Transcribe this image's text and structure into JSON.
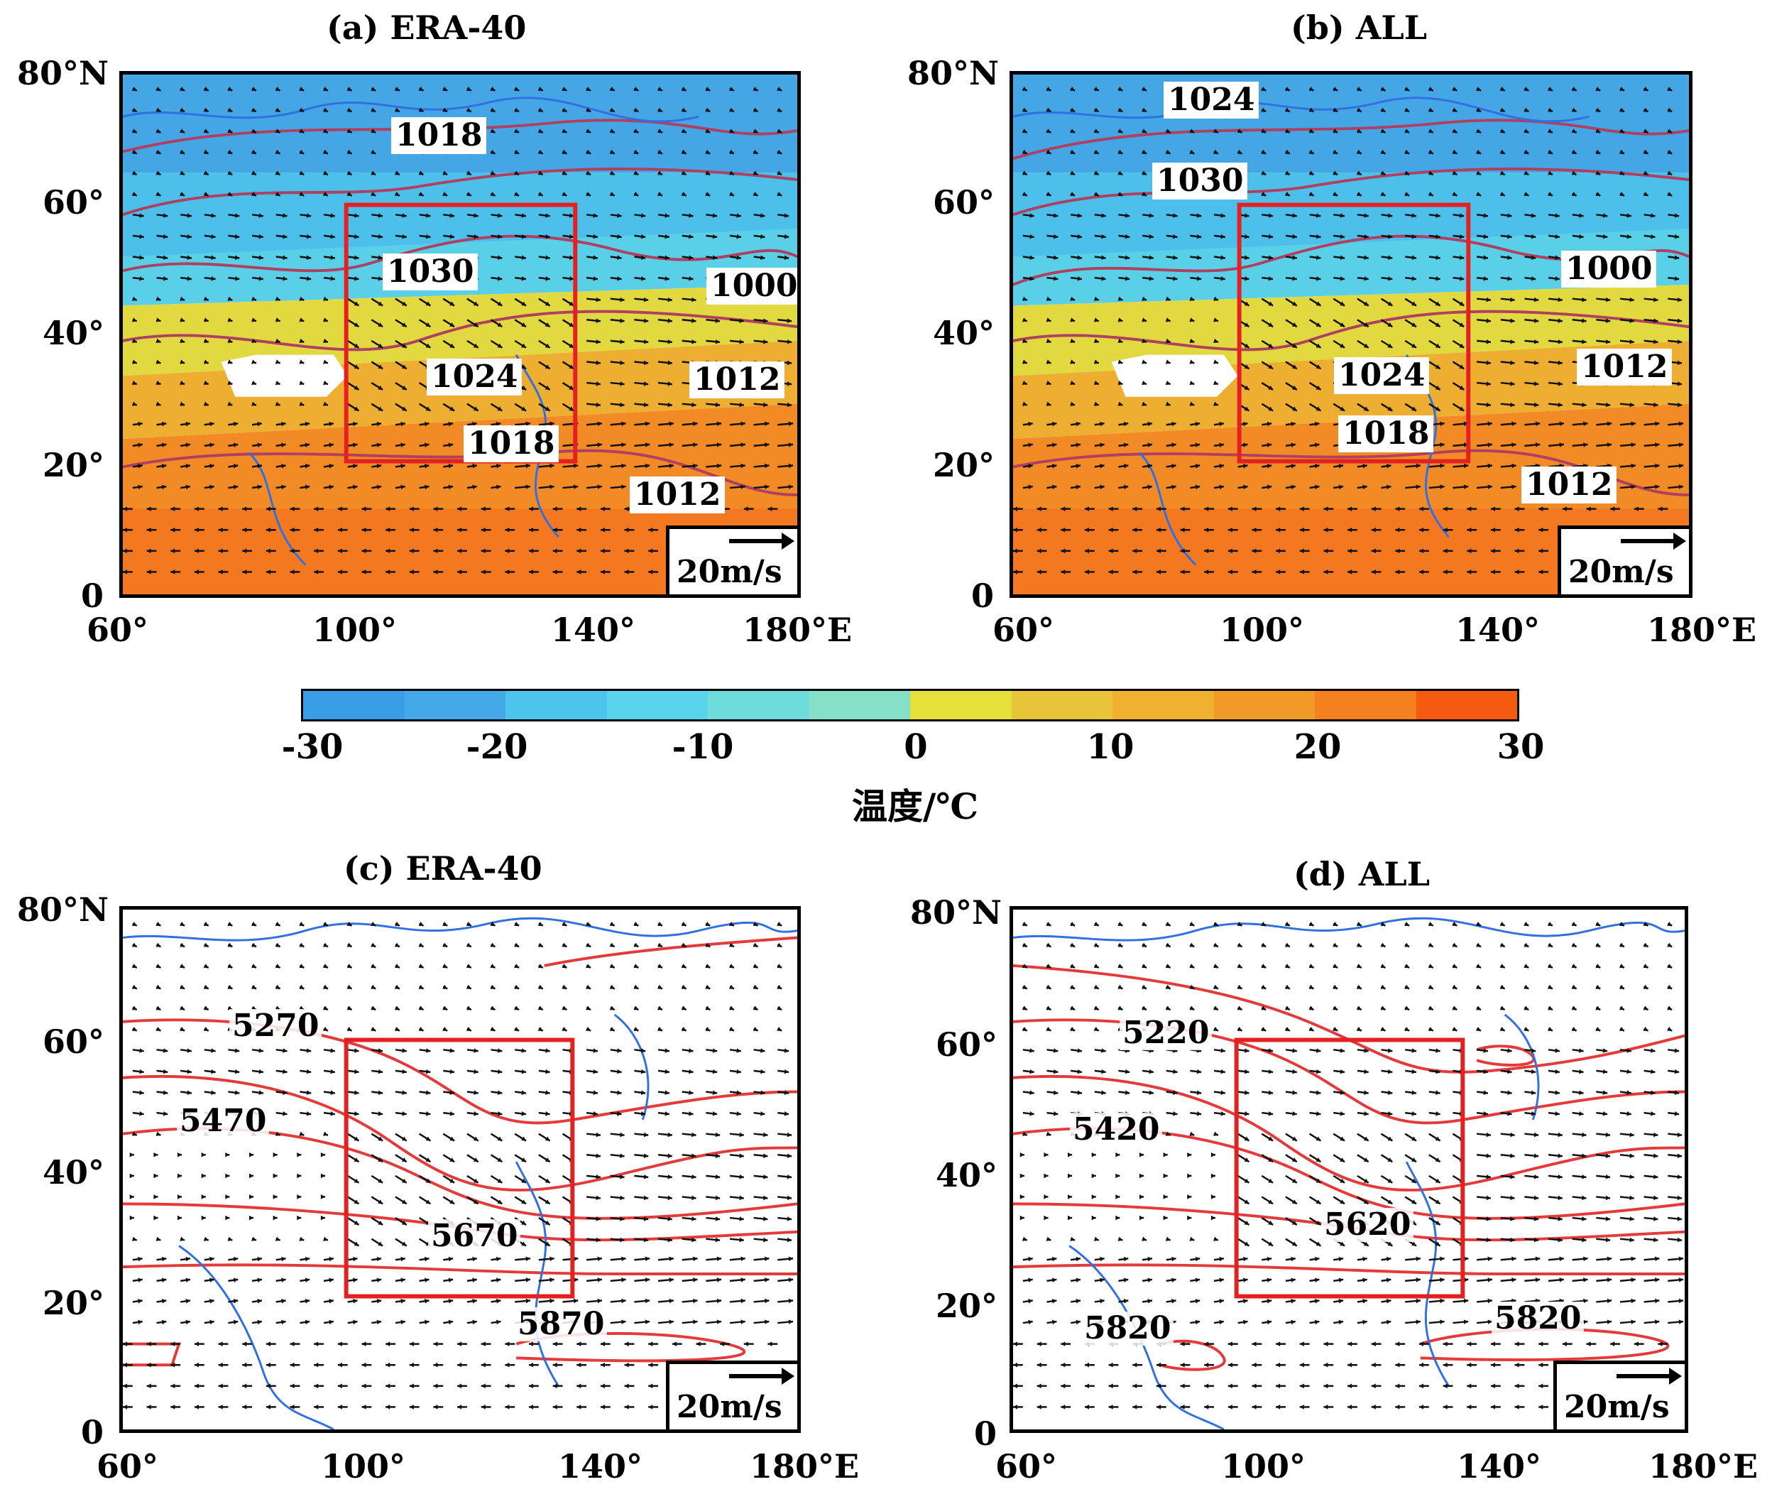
{
  "panels": {
    "a": {
      "title": "(a) ERA-40",
      "labels": [
        "1018",
        "1030",
        "1000",
        "1024",
        "1012",
        "1018",
        "1012"
      ],
      "scale": "20m/s"
    },
    "b": {
      "title": "(b) ALL",
      "labels": [
        "1024",
        "1030",
        "1000",
        "1024",
        "1012",
        "1018",
        "1012"
      ],
      "scale": "20m/s"
    },
    "c": {
      "title": "(c) ERA-40",
      "labels": [
        "5270",
        "5470",
        "5670",
        "5870"
      ],
      "scale": "20m/s"
    },
    "d": {
      "title": "(d) ALL",
      "labels": [
        "5220",
        "5420",
        "5620",
        "5820",
        "5820"
      ],
      "scale": "20m/s"
    }
  },
  "axes": {
    "lat_ticks": [
      "80°N",
      "60°",
      "40°",
      "20°",
      "0"
    ],
    "lon_ticks": [
      "60°",
      "100°",
      "140°",
      "180°E"
    ]
  },
  "colorbar": {
    "ticks": [
      "-30",
      "-20",
      "-10",
      "0",
      "10",
      "20",
      "30"
    ],
    "label": "温度/℃",
    "colors": [
      "#3a9ee6",
      "#45a8e8",
      "#4cc4ec",
      "#5ad3ec",
      "#6fdcdc",
      "#86e0c8",
      "#e6e03a",
      "#e8c43a",
      "#f0b030",
      "#f29a28",
      "#f48020",
      "#f45a10"
    ]
  }
}
